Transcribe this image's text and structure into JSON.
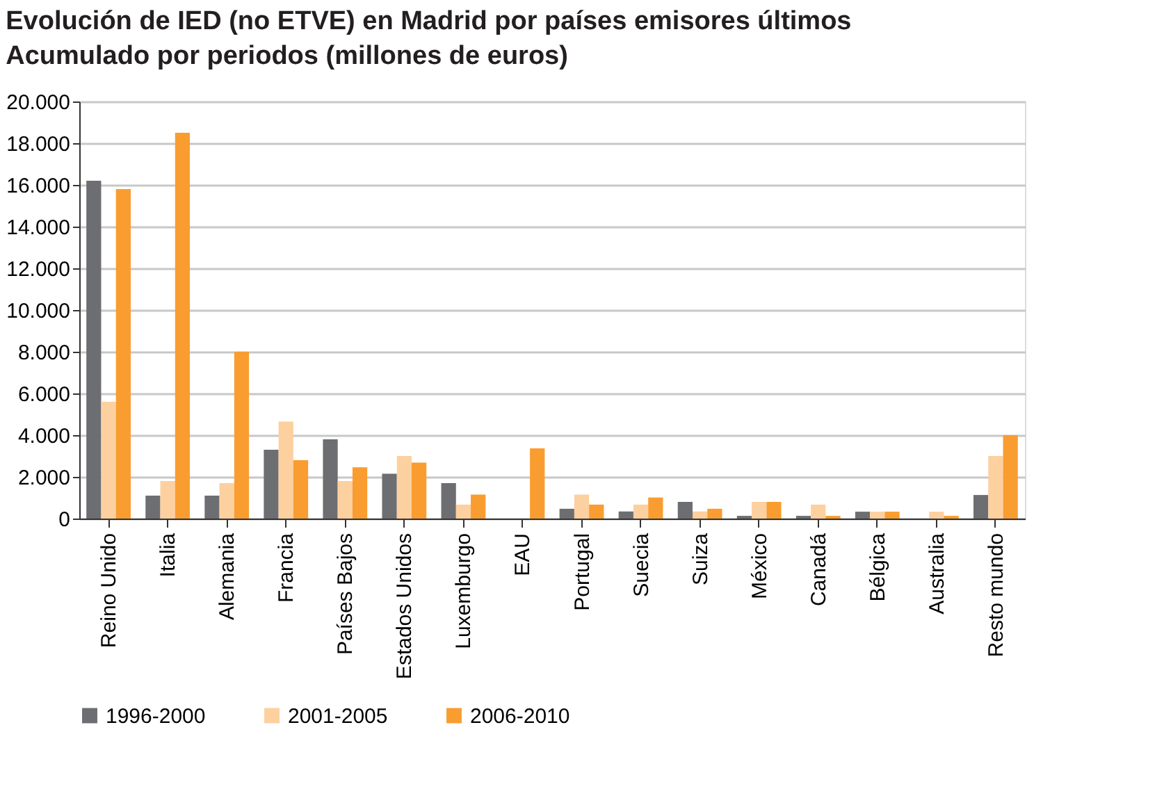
{
  "chart_data": {
    "type": "bar",
    "title": "Evolución de IED (no ETVE) en Madrid por países emisores últimos",
    "subtitle": "Acumulado por periodos (millones de euros)",
    "categories": [
      "Reino Unido",
      "Italia",
      "Alemania",
      "Francia",
      "Países Bajos",
      "Estados Unidos",
      "Luxemburgo",
      "EAU",
      "Portugal",
      "Suecia",
      "Suiza",
      "México",
      "Canadá",
      "Bélgica",
      "Australia",
      "Resto mundo"
    ],
    "series": [
      {
        "name": "1996-2000",
        "color": "#6d6e71",
        "values": [
          16200,
          1100,
          1100,
          3300,
          3800,
          2150,
          1700,
          0,
          470,
          340,
          800,
          130,
          130,
          330,
          0,
          1130
        ]
      },
      {
        "name": "2001-2005",
        "color": "#fdd09f",
        "values": [
          5600,
          1800,
          1700,
          4650,
          1800,
          3000,
          670,
          0,
          1150,
          670,
          340,
          800,
          670,
          330,
          330,
          3000
        ]
      },
      {
        "name": "2006-2010",
        "color": "#f99d31",
        "values": [
          15800,
          18500,
          8000,
          2800,
          2460,
          2680,
          1150,
          3370,
          670,
          1010,
          470,
          800,
          130,
          330,
          130,
          4000
        ]
      }
    ],
    "ylim": [
      0,
      20000
    ],
    "yticks": [
      {
        "value": 0,
        "label": "0"
      },
      {
        "value": 2000,
        "label": "2.000"
      },
      {
        "value": 4000,
        "label": "4.000"
      },
      {
        "value": 6000,
        "label": "6.000"
      },
      {
        "value": 8000,
        "label": "8.000"
      },
      {
        "value": 10000,
        "label": "10.000"
      },
      {
        "value": 12000,
        "label": "12.000"
      },
      {
        "value": 14000,
        "label": "14.000"
      },
      {
        "value": 16000,
        "label": "16.000"
      },
      {
        "value": 18000,
        "label": "18.000"
      },
      {
        "value": 20000,
        "label": "20.000"
      }
    ],
    "grid": "y",
    "legend": "bottom"
  }
}
